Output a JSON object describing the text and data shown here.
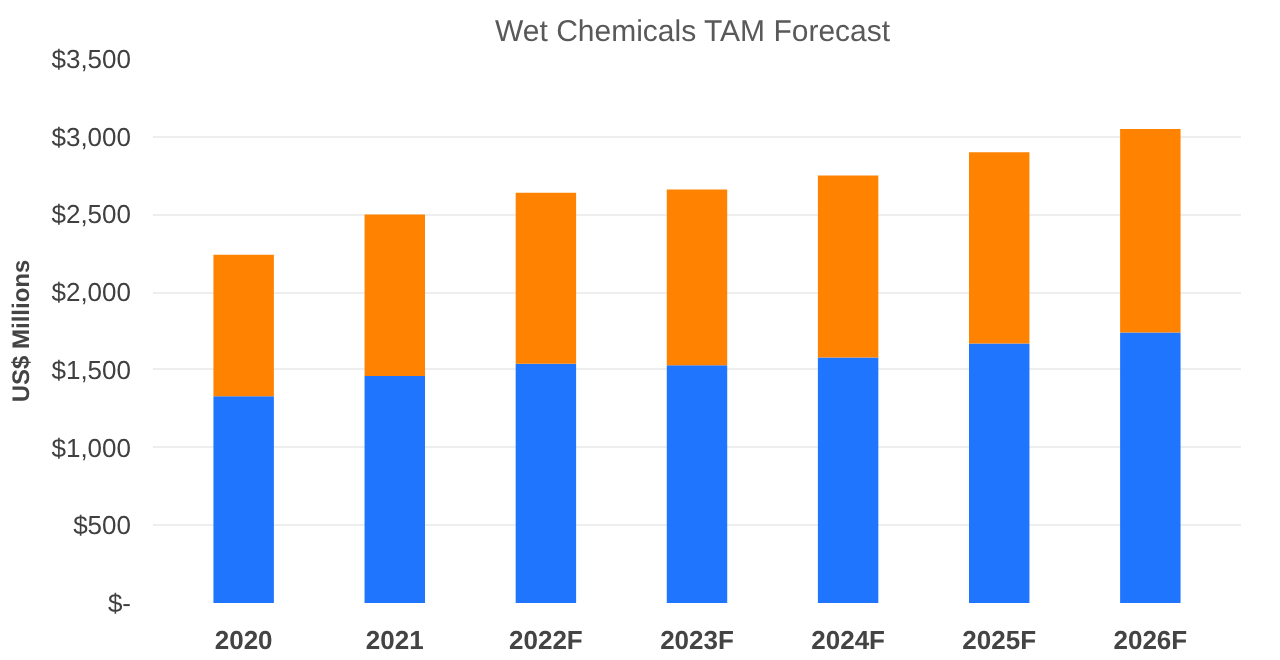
{
  "chart_data": {
    "type": "bar",
    "title": "Wet Chemicals  TAM Forecast",
    "ylabel": "US$ Millions",
    "categories": [
      "2020",
      "2021",
      "2022F",
      "2023F",
      "2024F",
      "2025F",
      "2026F"
    ],
    "stacked": true,
    "series": [
      {
        "color": "#1f75fe",
        "values": [
          1330,
          1460,
          1540,
          1530,
          1580,
          1670,
          1740
        ]
      },
      {
        "color": "#ff8300",
        "values": [
          910,
          1040,
          1100,
          1130,
          1170,
          1230,
          1310
        ]
      }
    ],
    "ylim": [
      0,
      3500
    ],
    "yticks": [
      {
        "value": 0,
        "label": "$-"
      },
      {
        "value": 500,
        "label": "$500"
      },
      {
        "value": 1000,
        "label": "$1,000"
      },
      {
        "value": 1500,
        "label": "$1,500"
      },
      {
        "value": 2000,
        "label": "$2,000"
      },
      {
        "value": 2500,
        "label": "$2,500"
      },
      {
        "value": 3000,
        "label": "$3,000"
      },
      {
        "value": 3500,
        "label": "$3,500"
      }
    ],
    "grid": "y"
  }
}
